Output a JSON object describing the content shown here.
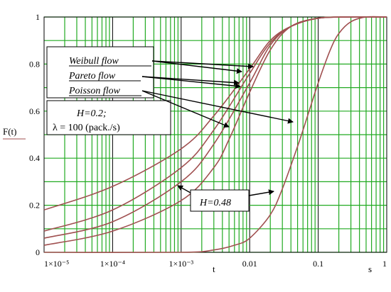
{
  "chart_data": {
    "type": "line",
    "xscale": "log",
    "xlim": [
      1e-05,
      1
    ],
    "ylim": [
      0,
      1
    ],
    "x_ticks": [
      "1×10⁻⁵",
      "1×10⁻⁴",
      "1×10⁻³",
      "0.01",
      "0.1",
      "1"
    ],
    "y_ticks": [
      "0",
      "0.2",
      "0.4",
      "0.6",
      "0.8",
      "1"
    ],
    "xlabel": "t",
    "x_unit": "s",
    "ylabel": "F(t)",
    "grid": true,
    "series_color": "#a05050",
    "grid_color": "#22aa22",
    "series": [
      {
        "group": "H=0.2",
        "x": [
          1e-05,
          0.0001,
          0.001,
          0.003,
          0.01,
          0.02,
          0.04,
          0.1,
          0.3,
          1
        ],
        "y": [
          0.18,
          0.28,
          0.44,
          0.58,
          0.78,
          0.9,
          0.96,
          0.995,
          1,
          1
        ]
      },
      {
        "group": "H=0.2",
        "x": [
          1e-05,
          0.0001,
          0.001,
          0.003,
          0.01,
          0.02,
          0.04,
          0.1,
          0.3,
          1
        ],
        "y": [
          0.09,
          0.18,
          0.36,
          0.52,
          0.76,
          0.89,
          0.96,
          0.995,
          1,
          1
        ]
      },
      {
        "group": "H=0.2",
        "x": [
          1e-05,
          0.0001,
          0.001,
          0.003,
          0.01,
          0.02,
          0.04,
          0.1,
          0.3,
          1
        ],
        "y": [
          0.06,
          0.13,
          0.3,
          0.46,
          0.72,
          0.88,
          0.96,
          0.995,
          1,
          1
        ]
      },
      {
        "group": "H=0.2",
        "x": [
          1e-05,
          0.0001,
          0.001,
          0.003,
          0.005,
          0.01,
          0.02,
          0.04,
          0.1,
          0.3,
          1
        ],
        "y": [
          0.03,
          0.09,
          0.22,
          0.36,
          0.48,
          0.68,
          0.86,
          0.96,
          0.995,
          1,
          1
        ]
      },
      {
        "group": "H=0.48",
        "x": [
          1e-05,
          0.001,
          0.003,
          0.006,
          0.01,
          0.02,
          0.03,
          0.05,
          0.07,
          0.1,
          0.15,
          0.2,
          0.3,
          0.5,
          1
        ],
        "y": [
          0,
          0,
          0.01,
          0.03,
          0.06,
          0.16,
          0.27,
          0.45,
          0.58,
          0.72,
          0.86,
          0.93,
          0.98,
          1,
          1
        ]
      }
    ],
    "annotations": {
      "weibull": "Weibull flow",
      "pareto": "Pareto flow",
      "poisson": "Poisson flow",
      "h1": "H=0.2;",
      "lambda": "λ = 100 (pack./s)",
      "h2": "H=0.48"
    }
  }
}
